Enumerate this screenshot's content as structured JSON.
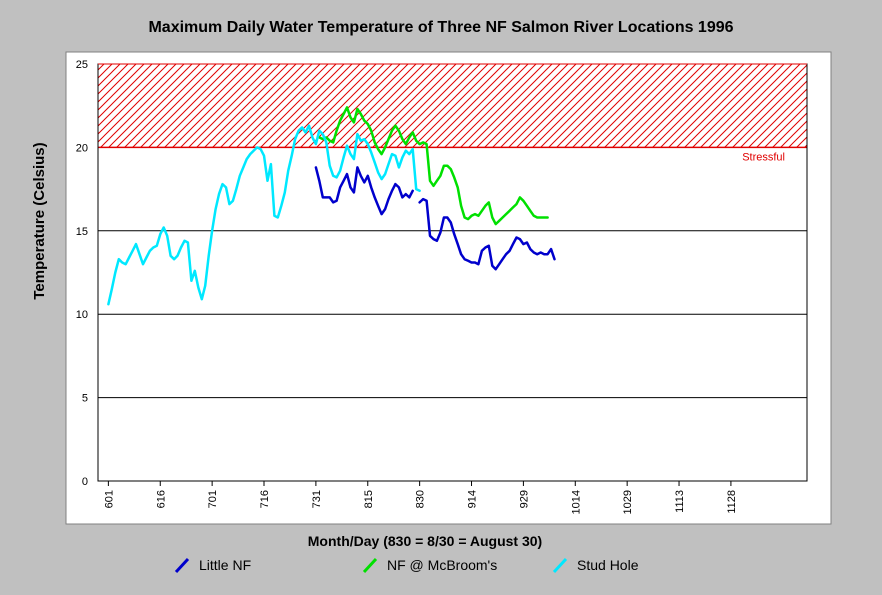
{
  "chart_data": {
    "type": "line",
    "title": "Maximum Daily Water Temperature of Three NF Salmon River Locations 1996",
    "xlabel": "Month/Day (830 = 8/30 = August 30)",
    "ylabel": "Temperature (Celsius)",
    "xlim": [
      "1996-05-29",
      "1996-12-20"
    ],
    "ylim": [
      0,
      25
    ],
    "yticks": [
      0,
      5,
      10,
      15,
      20,
      25
    ],
    "xticks": [
      {
        "date": "1996-06-01",
        "label": "601"
      },
      {
        "date": "1996-06-16",
        "label": "616"
      },
      {
        "date": "1996-07-01",
        "label": "701"
      },
      {
        "date": "1996-07-16",
        "label": "716"
      },
      {
        "date": "1996-07-31",
        "label": "731"
      },
      {
        "date": "1996-08-15",
        "label": "815"
      },
      {
        "date": "1996-08-30",
        "label": "830"
      },
      {
        "date": "1996-09-14",
        "label": "914"
      },
      {
        "date": "1996-09-29",
        "label": "929"
      },
      {
        "date": "1996-10-14",
        "label": "1014"
      },
      {
        "date": "1996-10-29",
        "label": "1029"
      },
      {
        "date": "1996-11-13",
        "label": "1113"
      },
      {
        "date": "1996-11-28",
        "label": "1128"
      }
    ],
    "grid": {
      "horizontal": true,
      "vertical": false
    },
    "threshold": {
      "label": "Stressful",
      "from": 20,
      "to": 25,
      "color": "#e00000"
    },
    "legend": "bottom",
    "series": [
      {
        "name": "Little NF",
        "color": "#0000cc",
        "points": [
          [
            "1996-07-31",
            18.8
          ],
          [
            "1996-08-01",
            18.0
          ],
          [
            "1996-08-02",
            17.0
          ],
          [
            "1996-08-03",
            17.0
          ],
          [
            "1996-08-04",
            17.0
          ],
          [
            "1996-08-05",
            16.7
          ],
          [
            "1996-08-06",
            16.8
          ],
          [
            "1996-08-07",
            17.6
          ],
          [
            "1996-08-08",
            18.0
          ],
          [
            "1996-08-09",
            18.4
          ],
          [
            "1996-08-10",
            17.6
          ],
          [
            "1996-08-11",
            17.3
          ],
          [
            "1996-08-12",
            18.8
          ],
          [
            "1996-08-13",
            18.3
          ],
          [
            "1996-08-14",
            17.9
          ],
          [
            "1996-08-15",
            18.3
          ],
          [
            "1996-08-16",
            17.6
          ],
          [
            "1996-08-17",
            17.0
          ],
          [
            "1996-08-18",
            16.5
          ],
          [
            "1996-08-19",
            16.0
          ],
          [
            "1996-08-20",
            16.3
          ],
          [
            "1996-08-21",
            16.9
          ],
          [
            "1996-08-22",
            17.4
          ],
          [
            "1996-08-23",
            17.8
          ],
          [
            "1996-08-24",
            17.6
          ],
          [
            "1996-08-25",
            17.0
          ],
          [
            "1996-08-26",
            17.2
          ],
          [
            "1996-08-27",
            17.0
          ],
          [
            "1996-08-28",
            17.4
          ],
          null,
          [
            "1996-08-30",
            16.7
          ],
          [
            "1996-08-31",
            16.9
          ],
          [
            "1996-09-01",
            16.8
          ],
          [
            "1996-09-02",
            14.7
          ],
          [
            "1996-09-03",
            14.5
          ],
          [
            "1996-09-04",
            14.4
          ],
          [
            "1996-09-05",
            14.9
          ],
          [
            "1996-09-06",
            15.8
          ],
          [
            "1996-09-07",
            15.8
          ],
          [
            "1996-09-08",
            15.5
          ],
          [
            "1996-09-09",
            14.8
          ],
          [
            "1996-09-10",
            14.2
          ],
          [
            "1996-09-11",
            13.6
          ],
          [
            "1996-09-12",
            13.3
          ],
          [
            "1996-09-13",
            13.2
          ],
          [
            "1996-09-14",
            13.1
          ],
          [
            "1996-09-15",
            13.1
          ],
          [
            "1996-09-16",
            13.0
          ],
          [
            "1996-09-17",
            13.8
          ],
          [
            "1996-09-18",
            14.0
          ],
          [
            "1996-09-19",
            14.1
          ],
          [
            "1996-09-20",
            12.9
          ],
          [
            "1996-09-21",
            12.7
          ],
          [
            "1996-09-22",
            13.0
          ],
          [
            "1996-09-23",
            13.3
          ],
          [
            "1996-09-24",
            13.6
          ],
          [
            "1996-09-25",
            13.8
          ],
          [
            "1996-09-26",
            14.2
          ],
          [
            "1996-09-27",
            14.6
          ],
          [
            "1996-09-28",
            14.5
          ],
          [
            "1996-09-29",
            14.2
          ],
          [
            "1996-09-30",
            14.3
          ],
          [
            "1996-10-01",
            13.9
          ],
          [
            "1996-10-02",
            13.7
          ],
          [
            "1996-10-03",
            13.6
          ],
          [
            "1996-10-04",
            13.7
          ],
          [
            "1996-10-05",
            13.6
          ],
          [
            "1996-10-06",
            13.6
          ],
          [
            "1996-10-07",
            13.9
          ],
          [
            "1996-10-08",
            13.3
          ]
        ]
      },
      {
        "name": "NF @ McBroom's",
        "color": "#00e000",
        "points": [
          [
            "1996-08-01",
            20.6
          ],
          [
            "1996-08-02",
            20.5
          ],
          [
            "1996-08-03",
            20.6
          ],
          [
            "1996-08-04",
            20.4
          ],
          [
            "1996-08-05",
            20.3
          ],
          [
            "1996-08-06",
            21.0
          ],
          [
            "1996-08-07",
            21.6
          ],
          [
            "1996-08-08",
            22.0
          ],
          [
            "1996-08-09",
            22.4
          ],
          [
            "1996-08-10",
            21.8
          ],
          [
            "1996-08-11",
            21.5
          ],
          [
            "1996-08-12",
            22.3
          ],
          [
            "1996-08-13",
            22.0
          ],
          [
            "1996-08-14",
            21.6
          ],
          [
            "1996-08-15",
            21.4
          ],
          [
            "1996-08-16",
            21.0
          ],
          [
            "1996-08-17",
            20.3
          ],
          [
            "1996-08-18",
            19.9
          ],
          [
            "1996-08-19",
            19.6
          ],
          [
            "1996-08-20",
            20.0
          ],
          [
            "1996-08-21",
            20.5
          ],
          [
            "1996-08-22",
            21.0
          ],
          [
            "1996-08-23",
            21.3
          ],
          [
            "1996-08-24",
            21.0
          ],
          [
            "1996-08-25",
            20.5
          ],
          [
            "1996-08-26",
            20.2
          ],
          [
            "1996-08-27",
            20.6
          ],
          [
            "1996-08-28",
            20.9
          ],
          [
            "1996-08-29",
            20.4
          ],
          [
            "1996-08-30",
            20.2
          ],
          [
            "1996-08-31",
            20.3
          ],
          [
            "1996-09-01",
            20.2
          ],
          [
            "1996-09-02",
            18.0
          ],
          [
            "1996-09-03",
            17.7
          ],
          [
            "1996-09-04",
            18.0
          ],
          [
            "1996-09-05",
            18.3
          ],
          [
            "1996-09-06",
            18.9
          ],
          [
            "1996-09-07",
            18.9
          ],
          [
            "1996-09-08",
            18.7
          ],
          [
            "1996-09-09",
            18.2
          ],
          [
            "1996-09-10",
            17.6
          ],
          [
            "1996-09-11",
            16.5
          ],
          [
            "1996-09-12",
            15.8
          ],
          [
            "1996-09-13",
            15.7
          ],
          [
            "1996-09-14",
            15.9
          ],
          [
            "1996-09-15",
            16.0
          ],
          [
            "1996-09-16",
            15.9
          ],
          [
            "1996-09-17",
            16.2
          ],
          [
            "1996-09-18",
            16.5
          ],
          [
            "1996-09-19",
            16.7
          ],
          [
            "1996-09-20",
            15.8
          ],
          [
            "1996-09-21",
            15.4
          ],
          [
            "1996-09-22",
            15.6
          ],
          [
            "1996-09-23",
            15.8
          ],
          [
            "1996-09-24",
            16.0
          ],
          [
            "1996-09-25",
            16.2
          ],
          [
            "1996-09-26",
            16.4
          ],
          [
            "1996-09-27",
            16.6
          ],
          [
            "1996-09-28",
            17.0
          ],
          [
            "1996-09-29",
            16.8
          ],
          [
            "1996-09-30",
            16.5
          ],
          [
            "1996-10-01",
            16.2
          ],
          [
            "1996-10-02",
            15.9
          ],
          [
            "1996-10-03",
            15.8
          ],
          [
            "1996-10-04",
            15.8
          ],
          [
            "1996-10-05",
            15.8
          ],
          [
            "1996-10-06",
            15.8
          ]
        ]
      },
      {
        "name": "Stud Hole",
        "color": "#00e8ff",
        "points": [
          [
            "1996-06-01",
            10.6
          ],
          [
            "1996-06-02",
            11.5
          ],
          [
            "1996-06-03",
            12.5
          ],
          [
            "1996-06-04",
            13.3
          ],
          [
            "1996-06-05",
            13.1
          ],
          [
            "1996-06-06",
            13.0
          ],
          [
            "1996-06-07",
            13.4
          ],
          [
            "1996-06-08",
            13.8
          ],
          [
            "1996-06-09",
            14.2
          ],
          [
            "1996-06-10",
            13.6
          ],
          [
            "1996-06-11",
            13.0
          ],
          [
            "1996-06-12",
            13.4
          ],
          [
            "1996-06-13",
            13.8
          ],
          [
            "1996-06-14",
            14.0
          ],
          [
            "1996-06-15",
            14.1
          ],
          [
            "1996-06-16",
            14.8
          ],
          [
            "1996-06-17",
            15.2
          ],
          [
            "1996-06-18",
            14.7
          ],
          [
            "1996-06-19",
            13.5
          ],
          [
            "1996-06-20",
            13.3
          ],
          [
            "1996-06-21",
            13.5
          ],
          [
            "1996-06-22",
            14.0
          ],
          [
            "1996-06-23",
            14.4
          ],
          [
            "1996-06-24",
            14.3
          ],
          [
            "1996-06-25",
            12.0
          ],
          [
            "1996-06-26",
            12.6
          ],
          [
            "1996-06-27",
            11.6
          ],
          [
            "1996-06-28",
            10.9
          ],
          [
            "1996-06-29",
            11.7
          ],
          [
            "1996-06-30",
            13.5
          ],
          [
            "1996-07-01",
            15.0
          ],
          [
            "1996-07-02",
            16.3
          ],
          [
            "1996-07-03",
            17.2
          ],
          [
            "1996-07-04",
            17.8
          ],
          [
            "1996-07-05",
            17.6
          ],
          [
            "1996-07-06",
            16.6
          ],
          [
            "1996-07-07",
            16.8
          ],
          [
            "1996-07-08",
            17.5
          ],
          [
            "1996-07-09",
            18.3
          ],
          [
            "1996-07-10",
            18.8
          ],
          [
            "1996-07-11",
            19.3
          ],
          [
            "1996-07-12",
            19.6
          ],
          [
            "1996-07-13",
            19.8
          ],
          [
            "1996-07-14",
            20.0
          ],
          [
            "1996-07-15",
            19.9
          ],
          [
            "1996-07-16",
            19.5
          ],
          [
            "1996-07-17",
            18.0
          ],
          [
            "1996-07-18",
            19.0
          ],
          [
            "1996-07-19",
            15.9
          ],
          [
            "1996-07-20",
            15.8
          ],
          [
            "1996-07-21",
            16.5
          ],
          [
            "1996-07-22",
            17.3
          ],
          [
            "1996-07-23",
            18.6
          ],
          [
            "1996-07-24",
            19.5
          ],
          [
            "1996-07-25",
            20.5
          ],
          [
            "1996-07-26",
            21.0
          ],
          [
            "1996-07-27",
            21.2
          ],
          [
            "1996-07-28",
            20.9
          ],
          [
            "1996-07-29",
            21.3
          ],
          [
            "1996-07-30",
            20.6
          ],
          [
            "1996-07-31",
            20.2
          ],
          [
            "1996-08-01",
            21.0
          ],
          [
            "1996-08-02",
            20.8
          ],
          [
            "1996-08-03",
            20.3
          ],
          [
            "1996-08-04",
            18.9
          ],
          [
            "1996-08-05",
            18.3
          ],
          [
            "1996-08-06",
            18.2
          ],
          [
            "1996-08-07",
            18.6
          ],
          [
            "1996-08-08",
            19.4
          ],
          [
            "1996-08-09",
            20.1
          ],
          [
            "1996-08-10",
            19.6
          ],
          [
            "1996-08-11",
            19.3
          ],
          [
            "1996-08-12",
            20.8
          ],
          [
            "1996-08-13",
            20.4
          ],
          [
            "1996-08-14",
            20.5
          ],
          [
            "1996-08-15",
            20.2
          ],
          [
            "1996-08-16",
            19.7
          ],
          [
            "1996-08-17",
            19.1
          ],
          [
            "1996-08-18",
            18.5
          ],
          [
            "1996-08-19",
            18.1
          ],
          [
            "1996-08-20",
            18.4
          ],
          [
            "1996-08-21",
            19.0
          ],
          [
            "1996-08-22",
            19.6
          ],
          [
            "1996-08-23",
            19.5
          ],
          [
            "1996-08-24",
            18.8
          ],
          [
            "1996-08-25",
            19.4
          ],
          [
            "1996-08-26",
            19.8
          ],
          [
            "1996-08-27",
            19.6
          ],
          [
            "1996-08-28",
            19.9
          ],
          [
            "1996-08-29",
            17.5
          ],
          [
            "1996-08-30",
            17.4
          ]
        ]
      }
    ]
  }
}
